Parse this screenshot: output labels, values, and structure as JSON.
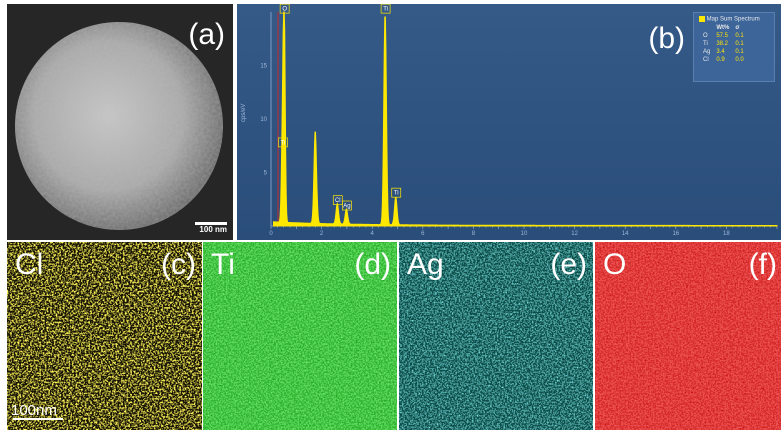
{
  "panels": {
    "a": {
      "label": "(a)",
      "scalebar": "100 nm"
    },
    "b": {
      "label": "(b)"
    },
    "c": {
      "label": "(c)",
      "element": "Cl",
      "scalebar": "100nm"
    },
    "d": {
      "label": "(d)",
      "element": "Ti"
    },
    "e": {
      "label": "(e)",
      "element": "Ag"
    },
    "f": {
      "label": "(f)",
      "element": "O"
    }
  },
  "legend": {
    "title": "Map Sum Spectrum",
    "headers": [
      "Wt%",
      "σ"
    ],
    "rows": [
      {
        "el": "O",
        "wt": "57.5",
        "sigma": "0.1"
      },
      {
        "el": "Ti",
        "wt": "38.2",
        "sigma": "0.1"
      },
      {
        "el": "Ag",
        "wt": "3.4",
        "sigma": "0.1"
      },
      {
        "el": "Cl",
        "wt": "0.9",
        "sigma": "0.0"
      }
    ]
  },
  "colors": {
    "spectrum": "#ffe800",
    "cl_map": "#ffe81a",
    "ti_map": "#22e022",
    "ag_map": "#33d6d6",
    "o_map": "#ff2020",
    "eds_bg": "#30568a"
  },
  "chart_data": {
    "type": "line",
    "ylabel": "cps/eV",
    "xlim": [
      0,
      20
    ],
    "ylim": [
      0,
      20
    ],
    "xticks": [
      "0",
      "2",
      "4",
      "6",
      "8",
      "10",
      "12",
      "14",
      "16",
      "18"
    ],
    "yticks": [
      "5",
      "10",
      "15"
    ],
    "peaks": [
      {
        "label": "O",
        "x": 0.52,
        "y": 19.8
      },
      {
        "label": "Ti",
        "x": 0.45,
        "y": 7.3
      },
      {
        "label": "",
        "x": 1.75,
        "y": 8.7
      },
      {
        "label": "Cl",
        "x": 2.62,
        "y": 1.9
      },
      {
        "label": "Ag",
        "x": 2.98,
        "y": 1.4
      },
      {
        "label": "Ti",
        "x": 4.51,
        "y": 19.8
      },
      {
        "label": "Ti",
        "x": 4.93,
        "y": 2.6
      }
    ]
  }
}
